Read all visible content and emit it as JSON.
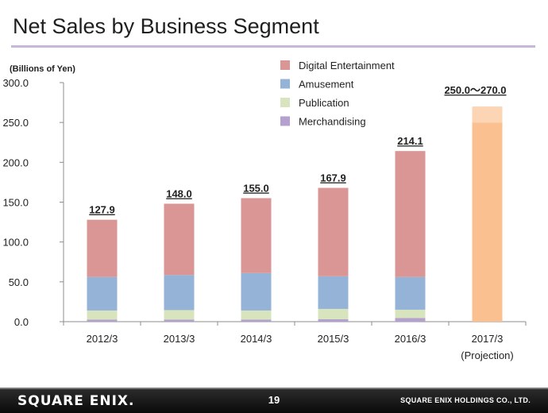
{
  "slide": {
    "title": "Net Sales by Business Segment",
    "page_number": "19",
    "logo_text": "SQUARE ENIX.",
    "company": "SQUARE ENIX HOLDINGS CO., LTD."
  },
  "chart_data": {
    "type": "bar",
    "stacked": true,
    "title": "Net Sales by Business Segment",
    "ylabel": "(Billions of Yen)",
    "ylim": [
      0,
      300
    ],
    "yticks": [
      0,
      50,
      100,
      150,
      200,
      250,
      300
    ],
    "ytick_labels": [
      "0.0",
      "50.0",
      "100.0",
      "150.0",
      "200.0",
      "250.0",
      "300.0"
    ],
    "grid": false,
    "legend_position": "top-center",
    "categories": [
      "2012/3",
      "2013/3",
      "2014/3",
      "2015/3",
      "2016/3",
      "2017/3"
    ],
    "category_sublabels": [
      "",
      "",
      "",
      "",
      "",
      "(Projection)"
    ],
    "series": [
      {
        "name": "Merchandising",
        "color": "#b4a1cf",
        "values": [
          2.5,
          2.5,
          2.5,
          3.0,
          4.5,
          null
        ]
      },
      {
        "name": "Publication",
        "color": "#d7e4bd",
        "values": [
          11.5,
          12.0,
          11.5,
          13.0,
          10.5,
          null
        ]
      },
      {
        "name": "Amusement",
        "color": "#95b3d7",
        "values": [
          42.0,
          44.0,
          47.0,
          41.0,
          41.0,
          null
        ]
      },
      {
        "name": "Digital Entertainment",
        "color": "#d99694",
        "values": [
          71.9,
          89.5,
          94.0,
          110.9,
          158.1,
          null
        ]
      }
    ],
    "legend_order": [
      "Digital Entertainment",
      "Amusement",
      "Publication",
      "Merchandising"
    ],
    "totals": [
      127.9,
      148.0,
      155.0,
      167.9,
      214.1,
      null
    ],
    "total_labels": [
      "127.9",
      "148.0",
      "155.0",
      "167.9",
      "214.1",
      "250.0～270.0"
    ],
    "projection": {
      "category": "2017/3",
      "low": 250.0,
      "high": 270.0,
      "color_low": "#fac090",
      "color_range": "#fcd5b5"
    }
  }
}
